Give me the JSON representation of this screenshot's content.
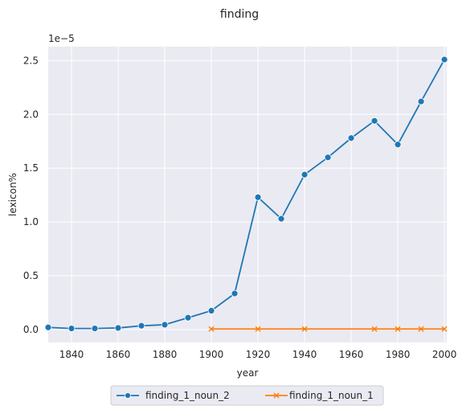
{
  "chart_data": {
    "type": "line",
    "title": "finding",
    "xlabel": "year",
    "ylabel": "lexicon%",
    "y_offset_label": "1e−5",
    "xlim": [
      1830,
      2001
    ],
    "ylim": [
      -0.12,
      2.63
    ],
    "y_scale_exponent": -5,
    "x_ticks": [
      1840,
      1860,
      1880,
      1900,
      1920,
      1940,
      1960,
      1980,
      2000
    ],
    "y_ticks": [
      0.0,
      0.5,
      1.0,
      1.5,
      2.0,
      2.5
    ],
    "y_tick_labels": [
      "0.0",
      "0.5",
      "1.0",
      "1.5",
      "2.0",
      "2.5"
    ],
    "grid": true,
    "legend_position": "bottom-center",
    "series": [
      {
        "name": "finding_1_noun_2",
        "color": "#1f77b4",
        "marker": "circle",
        "x": [
          1830,
          1840,
          1850,
          1860,
          1870,
          1880,
          1890,
          1900,
          1910,
          1920,
          1930,
          1940,
          1950,
          1960,
          1970,
          1980,
          1990,
          2000
        ],
        "y": [
          0.02,
          0.01,
          0.01,
          0.015,
          0.035,
          0.045,
          0.11,
          0.175,
          0.335,
          1.23,
          1.03,
          1.44,
          1.6,
          1.78,
          1.94,
          1.72,
          2.12,
          2.51
        ]
      },
      {
        "name": "finding_1_noun_1",
        "color": "#ff7f0e",
        "marker": "x",
        "x": [
          1900,
          1920,
          1940,
          1970,
          1980,
          1990,
          2000
        ],
        "y": [
          0.005,
          0.005,
          0.005,
          0.005,
          0.005,
          0.005,
          0.005
        ]
      }
    ]
  }
}
